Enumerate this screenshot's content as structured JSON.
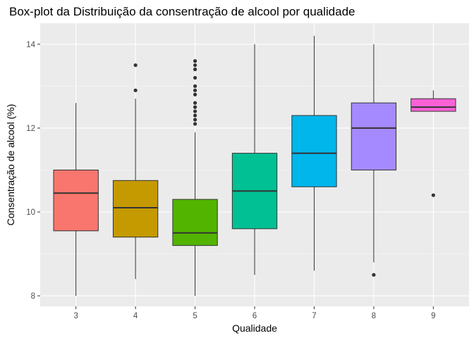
{
  "chart_data": {
    "type": "boxplot",
    "title": "Box-plot da Distribuição da consentração de alcool por qualidade",
    "xlabel": "Qualidade",
    "ylabel": "Consentração de alcool (%)",
    "ylim": [
      7.75,
      14.5
    ],
    "y_ticks": [
      8,
      10,
      12,
      14
    ],
    "y_tick_labels": [
      "8",
      "10",
      "12",
      "14"
    ],
    "grid": true,
    "legend": "none",
    "colors": {
      "panel": "#ebebeb",
      "grid_major": "#ffffff",
      "grid_minor": "#f5f5f5",
      "box_stroke": "#333333",
      "outlier": "#333333"
    },
    "categories": [
      "3",
      "4",
      "5",
      "6",
      "7",
      "8",
      "9"
    ],
    "boxes": [
      {
        "category": "3",
        "whisker_low": 8.0,
        "q1": 9.55,
        "median": 10.45,
        "q3": 11.0,
        "whisker_high": 12.6,
        "outliers": [],
        "color": "#f8766d"
      },
      {
        "category": "4",
        "whisker_low": 8.4,
        "q1": 9.4,
        "median": 10.1,
        "q3": 10.75,
        "whisker_high": 12.7,
        "outliers": [
          12.9,
          13.5
        ],
        "color": "#c49a00"
      },
      {
        "category": "5",
        "whisker_low": 8.0,
        "q1": 9.2,
        "median": 9.5,
        "q3": 10.3,
        "whisker_high": 11.9,
        "outliers": [
          12.1,
          12.2,
          12.3,
          12.4,
          12.5,
          12.6,
          12.8,
          12.9,
          13.0,
          13.2,
          13.4,
          13.5,
          13.6
        ],
        "color": "#53b400"
      },
      {
        "category": "6",
        "whisker_low": 8.5,
        "q1": 9.6,
        "median": 10.5,
        "q3": 11.4,
        "whisker_high": 14.0,
        "outliers": [],
        "color": "#00c094"
      },
      {
        "category": "7",
        "whisker_low": 8.6,
        "q1": 10.6,
        "median": 11.4,
        "q3": 12.3,
        "whisker_high": 14.2,
        "outliers": [],
        "color": "#00b6eb"
      },
      {
        "category": "8",
        "whisker_low": 8.8,
        "q1": 11.0,
        "median": 12.0,
        "q3": 12.6,
        "whisker_high": 14.0,
        "outliers": [
          8.5
        ],
        "color": "#a58aff"
      },
      {
        "category": "9",
        "whisker_low": 12.4,
        "q1": 12.4,
        "median": 12.5,
        "q3": 12.7,
        "whisker_high": 12.9,
        "outliers": [
          10.4
        ],
        "color": "#fb61d7"
      }
    ]
  }
}
